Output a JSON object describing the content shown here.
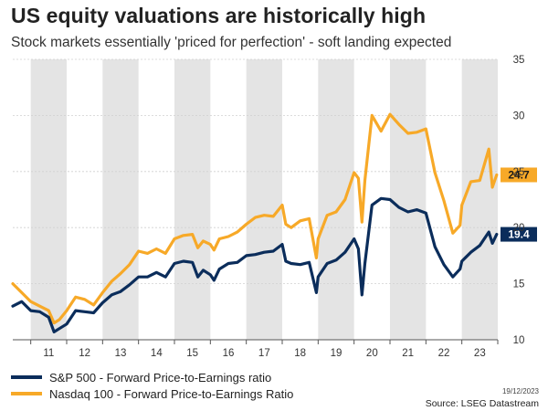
{
  "title": "US equity valuations are historically high",
  "subtitle": "Stock markets essentially 'priced for perfection' - soft landing expected",
  "date_stamp": "19/12/2023",
  "source": "Source: LSEG Datastream",
  "colors": {
    "sp500": "#0b2d5b",
    "nasdaq": "#f7a928",
    "band": "#e4e4e4",
    "grid": "#d0d0d0"
  },
  "chart_data": {
    "type": "line",
    "x_unit": "year",
    "xlim": [
      2010.5,
      2024.0
    ],
    "ylim": [
      10,
      35
    ],
    "y_axis_position": "right",
    "y_ticks": [
      "10",
      "15",
      "20",
      "25",
      "30",
      "35"
    ],
    "x_tick_labels": [
      {
        "label": "11",
        "x": 2011
      },
      {
        "label": "12",
        "x": 2012
      },
      {
        "label": "13",
        "x": 2013
      },
      {
        "label": "14",
        "x": 2014
      },
      {
        "label": "15",
        "x": 2015
      },
      {
        "label": "16",
        "x": 2016
      },
      {
        "label": "17",
        "x": 2017
      },
      {
        "label": "18",
        "x": 2018
      },
      {
        "label": "19",
        "x": 2019
      },
      {
        "label": "20",
        "x": 2020
      },
      {
        "label": "21",
        "x": 2021
      },
      {
        "label": "22",
        "x": 2022
      },
      {
        "label": "23",
        "x": 2023
      }
    ],
    "shaded_years": [
      2011,
      2013,
      2015,
      2017,
      2019,
      2021,
      2023
    ],
    "grid": true,
    "legend_position": "bottom-left",
    "series": [
      {
        "name": "S&P 500 - Forward Price-to-Earnings ratio",
        "end_label": "19.4",
        "x": [
          2010.5,
          2010.75,
          2011.0,
          2011.25,
          2011.5,
          2011.65,
          2011.8,
          2012.0,
          2012.25,
          2012.5,
          2012.75,
          2013.0,
          2013.25,
          2013.5,
          2013.75,
          2014.0,
          2014.25,
          2014.5,
          2014.75,
          2015.0,
          2015.25,
          2015.5,
          2015.65,
          2015.8,
          2016.0,
          2016.1,
          2016.25,
          2016.5,
          2016.75,
          2017.0,
          2017.25,
          2017.5,
          2017.75,
          2018.0,
          2018.1,
          2018.25,
          2018.5,
          2018.75,
          2018.95,
          2019.0,
          2019.25,
          2019.5,
          2019.75,
          2020.0,
          2020.12,
          2020.22,
          2020.3,
          2020.5,
          2020.75,
          2021.0,
          2021.25,
          2021.5,
          2021.75,
          2022.0,
          2022.25,
          2022.5,
          2022.75,
          2022.95,
          2023.0,
          2023.25,
          2023.5,
          2023.75,
          2023.85,
          2023.97
        ],
        "y": [
          13.0,
          13.4,
          12.6,
          12.5,
          12.0,
          10.7,
          11.0,
          11.4,
          12.6,
          12.5,
          12.4,
          13.3,
          14.0,
          14.3,
          14.9,
          15.6,
          15.6,
          16.0,
          15.6,
          16.8,
          17.0,
          16.9,
          15.6,
          16.2,
          15.8,
          15.3,
          16.3,
          16.8,
          16.9,
          17.5,
          17.6,
          17.8,
          17.9,
          18.5,
          17.0,
          16.8,
          16.7,
          16.9,
          14.2,
          15.6,
          16.8,
          17.1,
          17.8,
          19.0,
          18.1,
          14.0,
          16.8,
          22.0,
          22.6,
          22.5,
          21.8,
          21.4,
          21.6,
          21.3,
          18.3,
          16.7,
          15.6,
          16.3,
          17.0,
          17.8,
          18.4,
          19.6,
          18.6,
          19.4
        ]
      },
      {
        "name": "Nasdaq 100 - Forward Price-to-Earnings Ratio",
        "end_label": "24.7",
        "x": [
          2010.5,
          2010.75,
          2011.0,
          2011.25,
          2011.5,
          2011.65,
          2011.8,
          2012.0,
          2012.25,
          2012.5,
          2012.75,
          2013.0,
          2013.25,
          2013.5,
          2013.75,
          2014.0,
          2014.25,
          2014.5,
          2014.75,
          2015.0,
          2015.25,
          2015.5,
          2015.65,
          2015.8,
          2016.0,
          2016.1,
          2016.25,
          2016.5,
          2016.75,
          2017.0,
          2017.25,
          2017.5,
          2017.75,
          2018.0,
          2018.1,
          2018.25,
          2018.5,
          2018.75,
          2018.95,
          2019.0,
          2019.25,
          2019.5,
          2019.75,
          2020.0,
          2020.12,
          2020.22,
          2020.3,
          2020.5,
          2020.75,
          2021.0,
          2021.25,
          2021.5,
          2021.75,
          2022.0,
          2022.25,
          2022.5,
          2022.75,
          2022.95,
          2023.0,
          2023.25,
          2023.5,
          2023.75,
          2023.85,
          2023.97
        ],
        "y": [
          15.0,
          14.2,
          13.4,
          13.0,
          12.6,
          11.5,
          11.8,
          12.6,
          13.8,
          13.6,
          13.1,
          14.2,
          15.2,
          15.9,
          16.7,
          17.9,
          17.7,
          18.1,
          17.7,
          19.0,
          19.3,
          19.4,
          18.2,
          18.8,
          18.5,
          18.0,
          19.0,
          19.2,
          19.6,
          20.3,
          20.9,
          21.1,
          21.0,
          22.0,
          20.3,
          20.0,
          20.6,
          20.8,
          17.3,
          19.0,
          21.1,
          21.4,
          22.5,
          24.9,
          24.4,
          20.5,
          24.2,
          30.0,
          28.6,
          30.1,
          29.2,
          28.4,
          28.5,
          28.8,
          24.9,
          22.4,
          19.5,
          20.2,
          22.0,
          24.1,
          24.2,
          27.0,
          23.6,
          24.7
        ]
      }
    ]
  }
}
